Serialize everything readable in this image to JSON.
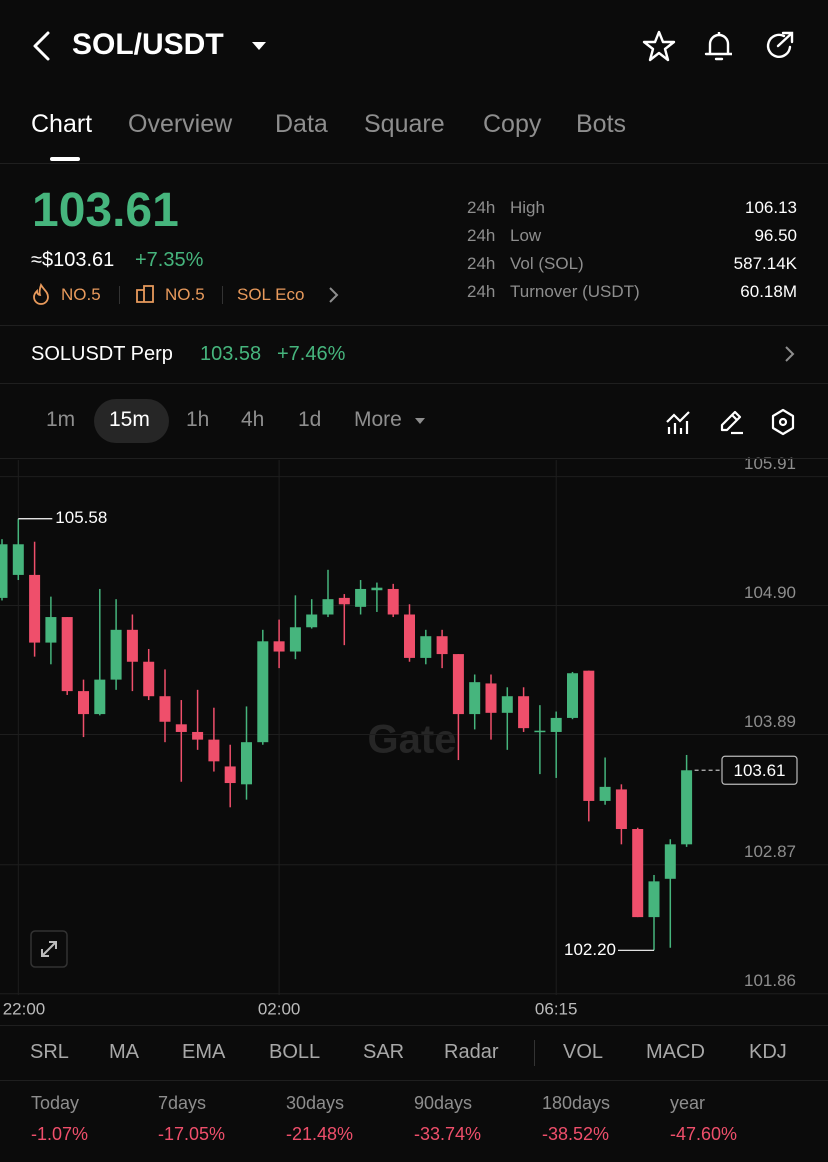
{
  "header": {
    "pair": "SOL/USDT"
  },
  "tabs": [
    "Chart",
    "Overview",
    "Data",
    "Square",
    "Copy",
    "Bots"
  ],
  "ticker": {
    "last_price": "103.61",
    "usd_price": "≈$103.61",
    "change": "+7.35%",
    "badges": [
      "NO.5",
      "NO.5",
      "SOL Eco"
    ]
  },
  "stats": [
    {
      "period": "24h",
      "label": "High",
      "value": "106.13"
    },
    {
      "period": "24h",
      "label": "Low",
      "value": "96.50"
    },
    {
      "period": "24h",
      "label": "Vol (SOL)",
      "value": "587.14K"
    },
    {
      "period": "24h",
      "label": "Turnover (USDT)",
      "value": "60.18M"
    }
  ],
  "perp": {
    "name": "SOLUSDT Perp",
    "price": "103.58",
    "change": "+7.46%"
  },
  "intervals": [
    "1m",
    "15m",
    "1h",
    "4h",
    "1d",
    "More"
  ],
  "watermark": "Gate",
  "chart_data": {
    "type": "candlestick",
    "categories": [
      null,
      "22:00",
      null,
      null,
      null,
      null,
      null,
      null,
      null,
      null,
      null,
      null,
      null,
      null,
      null,
      null,
      null,
      "02:00",
      null,
      null,
      null,
      null,
      null,
      null,
      null,
      null,
      null,
      null,
      null,
      null,
      null,
      null,
      null,
      null,
      "06:15",
      null,
      null,
      null,
      null,
      null,
      null,
      null,
      null
    ],
    "open": [
      104.96,
      105.14,
      105.14,
      104.61,
      104.81,
      104.23,
      104.05,
      104.32,
      104.71,
      104.46,
      104.19,
      103.97,
      103.91,
      103.85,
      103.64,
      103.5,
      103.83,
      104.62,
      104.54,
      104.73,
      104.83,
      104.96,
      104.89,
      105.02,
      105.03,
      104.83,
      104.49,
      104.66,
      104.52,
      104.05,
      104.29,
      104.06,
      104.19,
      103.91,
      103.91,
      104.02,
      104.39,
      103.37,
      103.46,
      103.15,
      102.46,
      102.76,
      103.03
    ],
    "high": [
      105.42,
      105.58,
      105.4,
      104.97,
      104.81,
      104.32,
      105.03,
      104.95,
      104.83,
      104.56,
      104.4,
      104.16,
      104.24,
      104.1,
      103.81,
      104.11,
      104.71,
      104.79,
      104.98,
      104.95,
      105.18,
      104.99,
      105.1,
      105.08,
      105.07,
      104.91,
      104.71,
      104.71,
      104.52,
      104.36,
      104.36,
      104.26,
      104.26,
      104.12,
      104.07,
      104.38,
      104.39,
      103.71,
      103.5,
      103.16,
      102.79,
      103.07,
      103.73
    ],
    "low": [
      104.94,
      105.1,
      104.5,
      104.44,
      104.2,
      103.87,
      104.04,
      104.24,
      104.23,
      104.16,
      103.83,
      103.52,
      103.77,
      103.6,
      103.32,
      103.38,
      103.81,
      104.41,
      104.48,
      104.72,
      104.81,
      104.59,
      104.83,
      104.85,
      104.81,
      104.46,
      104.44,
      104.41,
      103.69,
      103.93,
      103.85,
      103.77,
      103.91,
      103.58,
      103.55,
      104.01,
      103.21,
      103.34,
      103.03,
      102.46,
      102.2,
      102.22,
      103.01
    ],
    "close": [
      105.38,
      105.38,
      104.61,
      104.81,
      104.23,
      104.05,
      104.32,
      104.71,
      104.46,
      104.19,
      103.99,
      103.91,
      103.85,
      103.68,
      103.51,
      103.83,
      104.62,
      104.54,
      104.73,
      104.83,
      104.95,
      104.91,
      105.03,
      105.04,
      104.83,
      104.49,
      104.66,
      104.52,
      104.05,
      104.3,
      104.06,
      104.19,
      103.94,
      103.92,
      104.02,
      104.37,
      103.37,
      103.48,
      103.15,
      102.46,
      102.74,
      103.03,
      103.61
    ],
    "up_color": "#46b57d",
    "down_color": "#ef4f6b",
    "ylim": [
      101.85,
      106.04
    ],
    "yticks": [
      105.91,
      {
        "value": 104.9,
        "label": "104.90"
      },
      103.89,
      102.87,
      101.86
    ],
    "grid": true,
    "max_label": 105.58,
    "min_label": {
      "value": 102.2,
      "label": "102.20"
    },
    "last_price": 103.61
  },
  "indicators": [
    "SRL",
    "MA",
    "EMA",
    "BOLL",
    "SAR",
    "Radar",
    "VOL",
    "MACD",
    "KDJ"
  ],
  "performance": [
    {
      "period": "Today",
      "change": "-1.07%"
    },
    {
      "period": "7days",
      "change": "-17.05%"
    },
    {
      "period": "30days",
      "change": "-21.48%"
    },
    {
      "period": "90days",
      "change": "-33.74%"
    },
    {
      "period": "180days",
      "change": "-38.52%"
    },
    {
      "period": "year",
      "change": "-47.60%"
    }
  ]
}
